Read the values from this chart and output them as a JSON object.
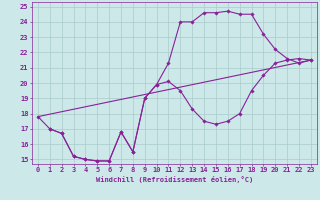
{
  "xlabel": "Windchill (Refroidissement éolien,°C)",
  "bg_color": "#cce8e8",
  "grid_color": "#aacccc",
  "line_color": "#882299",
  "xlim": [
    -0.5,
    23.5
  ],
  "ylim": [
    14.7,
    25.3
  ],
  "xticks": [
    0,
    1,
    2,
    3,
    4,
    5,
    6,
    7,
    8,
    9,
    10,
    11,
    12,
    13,
    14,
    15,
    16,
    17,
    18,
    19,
    20,
    21,
    22,
    23
  ],
  "yticks": [
    15,
    16,
    17,
    18,
    19,
    20,
    21,
    22,
    23,
    24,
    25
  ],
  "line1_x": [
    0,
    1,
    2,
    3,
    4,
    5,
    6,
    7,
    8,
    9,
    10,
    11,
    12,
    13,
    14,
    15,
    16,
    17,
    18,
    19,
    20,
    21,
    22,
    23
  ],
  "line1_y": [
    17.8,
    17.0,
    16.7,
    15.2,
    15.0,
    14.9,
    14.9,
    16.8,
    15.5,
    19.0,
    19.9,
    21.3,
    24.0,
    24.0,
    24.6,
    24.6,
    24.7,
    24.5,
    24.5,
    23.2,
    22.2,
    21.6,
    21.3,
    21.5
  ],
  "line2_x": [
    1,
    2,
    3,
    4,
    5,
    6,
    7,
    8,
    9,
    10,
    11,
    12,
    13,
    14,
    15,
    16,
    17,
    18,
    19,
    20,
    21,
    22,
    23
  ],
  "line2_y": [
    17.0,
    16.7,
    15.2,
    15.0,
    14.9,
    14.9,
    16.8,
    15.5,
    19.0,
    19.9,
    20.1,
    19.5,
    18.3,
    17.5,
    17.3,
    17.5,
    18.0,
    19.5,
    20.5,
    21.3,
    21.5,
    21.6,
    21.5
  ],
  "line3_x": [
    0,
    23
  ],
  "line3_y": [
    17.8,
    21.5
  ]
}
